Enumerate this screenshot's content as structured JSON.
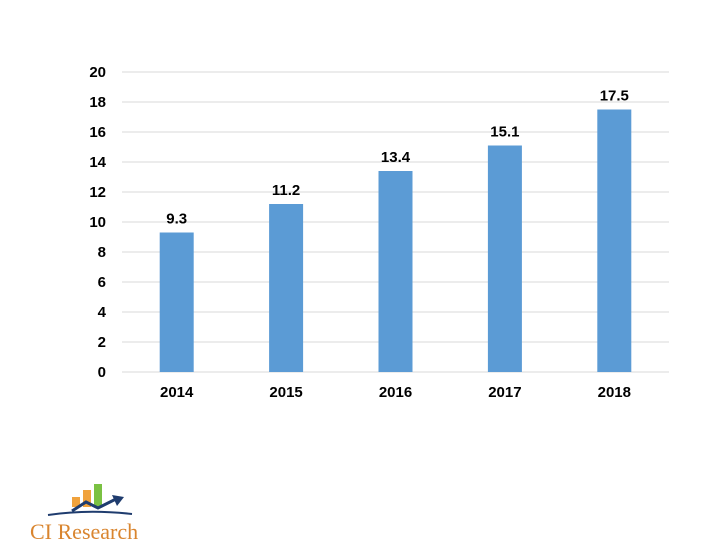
{
  "chart_data": {
    "type": "bar",
    "categories": [
      "2014",
      "2015",
      "2016",
      "2017",
      "2018"
    ],
    "values": [
      9.3,
      11.2,
      13.4,
      15.1,
      17.5
    ],
    "data_labels": [
      "9.3",
      "11.2",
      "13.4",
      "15.1",
      "17.5"
    ],
    "title": "",
    "xlabel": "",
    "ylabel": "",
    "ylim": [
      0,
      20
    ],
    "yticks": [
      0,
      2,
      4,
      6,
      8,
      10,
      12,
      14,
      16,
      18,
      20
    ],
    "grid": true,
    "bar_color": "#5b9bd5",
    "grid_color": "#d9d9d9"
  },
  "logo": {
    "text": "CI Research",
    "colors": {
      "bar_orange": "#f0a23c",
      "bar_green": "#7ac142",
      "arrow_navy": "#1f3c6e",
      "text": "#d9852f"
    }
  }
}
